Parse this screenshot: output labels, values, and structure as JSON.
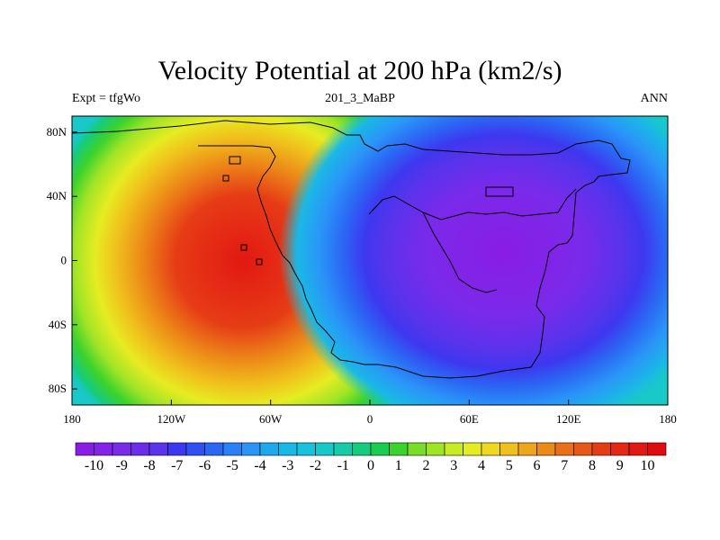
{
  "title": "Velocity Potential at 200 hPa (km2/s)",
  "left_string": "Expt = tfgWo",
  "center_string": "201_3_MaBP",
  "right_string": "ANN",
  "map": {
    "lon_range": [
      -180,
      180
    ],
    "lat_range": [
      -90,
      90
    ],
    "lon_ticks": [
      {
        "value": -180,
        "label": "180"
      },
      {
        "value": -120,
        "label": "120W"
      },
      {
        "value": -60,
        "label": "60W"
      },
      {
        "value": 0,
        "label": "0"
      },
      {
        "value": 60,
        "label": "60E"
      },
      {
        "value": 120,
        "label": "120E"
      },
      {
        "value": 180,
        "label": "180"
      }
    ],
    "lat_ticks": [
      {
        "value": 80,
        "label": "80N"
      },
      {
        "value": 40,
        "label": "40N"
      },
      {
        "value": 0,
        "label": "0"
      },
      {
        "value": -40,
        "label": "40S"
      },
      {
        "value": -80,
        "label": "80S"
      }
    ],
    "field_centers": [
      {
        "name": "maximum",
        "lon": -90,
        "lat": -10,
        "value": 10
      },
      {
        "name": "minimum",
        "lon": 80,
        "lat": 5,
        "value": -10
      }
    ],
    "colors": {
      "background_field": "#19c8c8",
      "coastline": "#000000"
    }
  },
  "colorbar": {
    "labels": [
      "-10",
      "-9",
      "-8",
      "-7",
      "-6",
      "-5",
      "-4",
      "-3",
      "-2",
      "-1",
      "0",
      "1",
      "2",
      "3",
      "4",
      "5",
      "6",
      "7",
      "8",
      "9",
      "10"
    ],
    "colors": [
      "#8a1ce6",
      "#8422e8",
      "#7a2aea",
      "#6a2eea",
      "#5a33ec",
      "#3d38f0",
      "#2f50f2",
      "#2a68f4",
      "#2a80f6",
      "#2a95f8",
      "#1ea8f0",
      "#1ab8e6",
      "#16c2dc",
      "#16c8c8",
      "#16cca8",
      "#14cc80",
      "#1acc50",
      "#3cd22c",
      "#78dc28",
      "#a0e426",
      "#c8ec24",
      "#e6ec22",
      "#f0d81e",
      "#f0c01c",
      "#eea61a",
      "#ec8a18",
      "#ea7018",
      "#e85618",
      "#e63c16",
      "#e42814",
      "#e21812",
      "#e00c10"
    ]
  }
}
